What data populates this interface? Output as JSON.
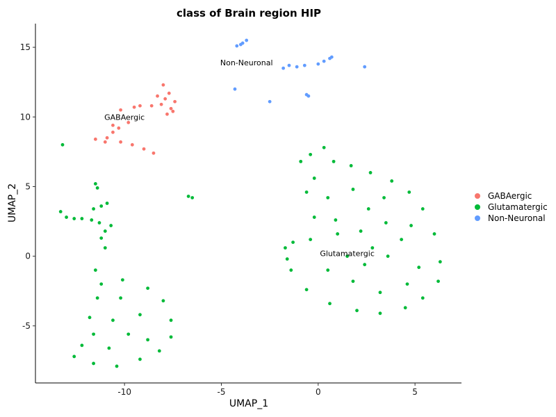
{
  "chart_data": {
    "type": "scatter",
    "title": "class of Brain region HIP",
    "xlabel": "UMAP_1",
    "ylabel": "UMAP_2",
    "xlim": [
      -14.6,
      7.4
    ],
    "ylim": [
      -9.1,
      16.7
    ],
    "x_ticks": [
      -10,
      -5,
      0,
      5
    ],
    "x_tick_labels": [
      "-10",
      "-5",
      "0",
      "5"
    ],
    "y_ticks": [
      -5,
      0,
      5,
      10,
      15
    ],
    "y_tick_labels": [
      "-5",
      "0",
      "5",
      "10",
      "15"
    ],
    "grid": false,
    "legend_position": "right",
    "series": [
      {
        "name": "GABAergic",
        "color": "#F8766D",
        "points": [
          [
            -7.9,
            11.3
          ],
          [
            -7.7,
            11.7
          ],
          [
            -7.6,
            10.6
          ],
          [
            -8.1,
            10.9
          ],
          [
            -8.3,
            11.5
          ],
          [
            -7.8,
            10.2
          ],
          [
            -7.4,
            11.1
          ],
          [
            -8.6,
            10.8
          ],
          [
            -9.5,
            10.7
          ],
          [
            -10.2,
            10.5
          ],
          [
            -9.8,
            9.6
          ],
          [
            -10.3,
            9.2
          ],
          [
            -10.6,
            8.9
          ],
          [
            -10.9,
            8.5
          ],
          [
            -11.5,
            8.4
          ],
          [
            -11.0,
            8.2
          ],
          [
            -10.2,
            8.2
          ],
          [
            -9.6,
            8.0
          ],
          [
            -9.0,
            7.7
          ],
          [
            -8.5,
            7.4
          ],
          [
            -8.0,
            12.3
          ],
          [
            -10.6,
            9.4
          ],
          [
            -9.2,
            10.8
          ],
          [
            -7.5,
            10.4
          ]
        ]
      },
      {
        "name": "Glutamatergic",
        "color": "#00BA38",
        "points": [
          [
            0.3,
            7.8
          ],
          [
            -0.4,
            7.3
          ],
          [
            -0.9,
            6.8
          ],
          [
            0.8,
            6.8
          ],
          [
            1.7,
            6.5
          ],
          [
            2.7,
            6.0
          ],
          [
            3.8,
            5.4
          ],
          [
            4.7,
            4.6
          ],
          [
            5.4,
            3.4
          ],
          [
            6.0,
            1.6
          ],
          [
            6.3,
            -0.4
          ],
          [
            6.2,
            -1.8
          ],
          [
            5.4,
            -3.0
          ],
          [
            4.5,
            -3.7
          ],
          [
            3.2,
            -4.1
          ],
          [
            2.0,
            -3.9
          ],
          [
            0.6,
            -3.4
          ],
          [
            -0.6,
            -2.4
          ],
          [
            -1.4,
            -1.0
          ],
          [
            -1.6,
            -0.2
          ],
          [
            -1.7,
            0.6
          ],
          [
            -1.3,
            1.0
          ],
          [
            -0.4,
            1.2
          ],
          [
            -0.2,
            2.8
          ],
          [
            -0.6,
            4.6
          ],
          [
            -0.2,
            5.6
          ],
          [
            0.5,
            4.2
          ],
          [
            0.9,
            2.6
          ],
          [
            1.8,
            4.8
          ],
          [
            2.6,
            3.4
          ],
          [
            3.5,
            2.4
          ],
          [
            4.3,
            1.2
          ],
          [
            2.8,
            0.6
          ],
          [
            1.5,
            0.0
          ],
          [
            0.5,
            -1.0
          ],
          [
            1.8,
            -1.8
          ],
          [
            3.2,
            -2.6
          ],
          [
            4.6,
            -2.0
          ],
          [
            5.2,
            -0.8
          ],
          [
            4.8,
            2.2
          ],
          [
            3.4,
            4.2
          ],
          [
            2.2,
            1.8
          ],
          [
            1.0,
            1.6
          ],
          [
            3.6,
            0.0
          ],
          [
            2.4,
            -0.6
          ],
          [
            -11.5,
            -1.0
          ],
          [
            -10.1,
            -1.7
          ],
          [
            -8.8,
            -2.3
          ],
          [
            -8.0,
            -3.2
          ],
          [
            -7.6,
            -4.6
          ],
          [
            -7.6,
            -5.8
          ],
          [
            -8.2,
            -6.8
          ],
          [
            -9.2,
            -7.4
          ],
          [
            -10.4,
            -7.9
          ],
          [
            -11.6,
            -7.7
          ],
          [
            -12.6,
            -7.2
          ],
          [
            -12.2,
            -6.4
          ],
          [
            -11.6,
            -5.6
          ],
          [
            -11.8,
            -4.4
          ],
          [
            -11.4,
            -3.0
          ],
          [
            -11.2,
            -2.0
          ],
          [
            -10.2,
            -3.0
          ],
          [
            -9.2,
            -4.2
          ],
          [
            -9.8,
            -5.6
          ],
          [
            -10.8,
            -6.6
          ],
          [
            -8.8,
            -6.0
          ],
          [
            -10.6,
            -4.6
          ],
          [
            -13.3,
            3.2
          ],
          [
            -13.0,
            2.8
          ],
          [
            -12.6,
            2.7
          ],
          [
            -12.2,
            2.7
          ],
          [
            -11.7,
            2.6
          ],
          [
            -11.3,
            2.4
          ],
          [
            -10.7,
            2.2
          ],
          [
            -11.0,
            1.8
          ],
          [
            -11.2,
            1.3
          ],
          [
            -11.0,
            0.6
          ],
          [
            -11.6,
            3.4
          ],
          [
            -11.2,
            3.6
          ],
          [
            -10.9,
            3.8
          ],
          [
            -13.2,
            8.0
          ],
          [
            -11.5,
            5.2
          ],
          [
            -11.4,
            4.9
          ],
          [
            -6.7,
            4.3
          ],
          [
            -6.5,
            4.2
          ]
        ]
      },
      {
        "name": "Non-Neuronal",
        "color": "#619CFF",
        "points": [
          [
            -4.2,
            15.1
          ],
          [
            -3.9,
            15.3
          ],
          [
            -3.7,
            15.5
          ],
          [
            -4.0,
            15.2
          ],
          [
            0.0,
            13.8
          ],
          [
            0.3,
            14.0
          ],
          [
            0.6,
            14.2
          ],
          [
            0.7,
            14.3
          ],
          [
            -1.8,
            13.5
          ],
          [
            -1.5,
            13.7
          ],
          [
            -1.1,
            13.6
          ],
          [
            -0.7,
            13.7
          ],
          [
            2.4,
            13.6
          ],
          [
            -4.3,
            12.0
          ],
          [
            -2.5,
            11.1
          ],
          [
            -0.6,
            11.6
          ],
          [
            -0.5,
            11.5
          ]
        ]
      }
    ],
    "cluster_labels": [
      {
        "text": "GABAergic",
        "x": -10.0,
        "y": 9.8
      },
      {
        "text": "Glutamatergic",
        "x": 1.5,
        "y": 0.0
      },
      {
        "text": "Non-Neuronal",
        "x": -3.7,
        "y": 13.7
      }
    ]
  }
}
